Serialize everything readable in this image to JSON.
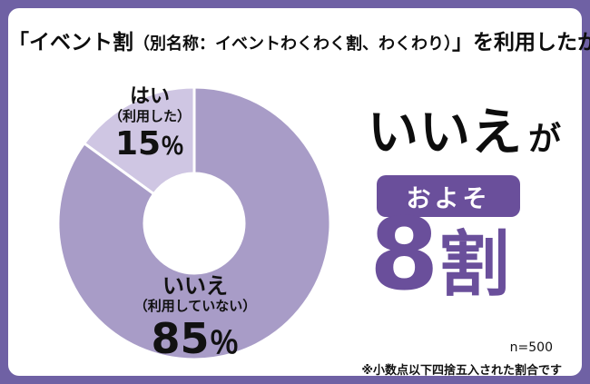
{
  "colors": {
    "accent": "#6a4f9b",
    "border": "#6f61a4",
    "slice_yes": "#cfc6e3",
    "slice_no": "#a89cc7"
  },
  "title": {
    "part1": "「イベント割",
    "part2": "（別名称：イベントわくわく割、わくわり）",
    "part3": "」を利用したか"
  },
  "chart_data": {
    "type": "pie",
    "donut": true,
    "title": "「イベント割（別名称：イベントわくわく割、わくわり）」を利用したか",
    "labels": [
      "はい（利用した）",
      "いいえ（利用していない）"
    ],
    "values": [
      15,
      85
    ],
    "colors": [
      "#cfc6e3",
      "#a89cc7"
    ],
    "start_fraction_from_top_clockwise": 0.85,
    "legend_position": "none",
    "grid": false
  },
  "pie_labels": {
    "yes_name": "はい",
    "yes_sub": "（利用した）",
    "yes_value": "15",
    "no_name": "いいえ",
    "no_sub": "（利用していない）",
    "no_value": "85",
    "percent_sign": "％"
  },
  "highlight": {
    "answer": "いいえ",
    "particle": "が",
    "approx": "およそ",
    "big_digit": "8",
    "big_unit": "割"
  },
  "footnotes": {
    "sample_size": "n=500",
    "note": "※小数点以下四捨五入された割合です"
  }
}
